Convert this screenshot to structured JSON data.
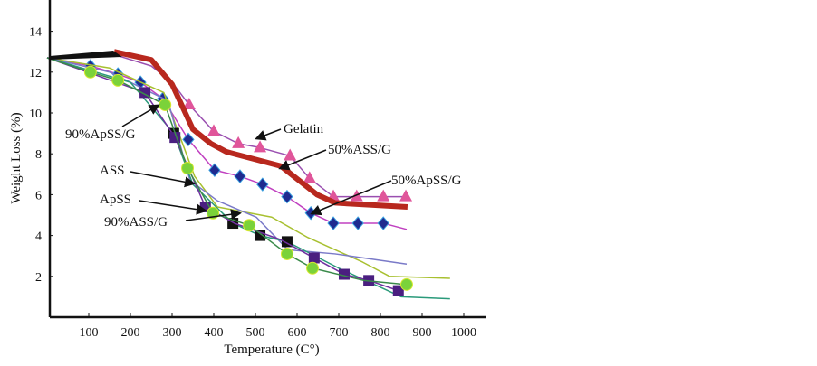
{
  "chart_data": {
    "type": "line",
    "title": "",
    "xlabel": "Temperature (C°)",
    "ylabel": "Weight Loss (%)",
    "xlim": [
      0,
      1050
    ],
    "ylim": [
      0,
      15.5
    ],
    "xticks": [
      "100",
      "200",
      "300",
      "400",
      "500",
      "600",
      "700",
      "800",
      "900",
      "1000"
    ],
    "yticks": [
      "2",
      "4",
      "6",
      "8",
      "10",
      "12",
      "14"
    ],
    "grid": false,
    "series": [
      {
        "id": "gelatin",
        "line_color": "#9a4fb0",
        "marker": "triangle",
        "marker_color": "#e0559a",
        "x": [
          0,
          170,
          250,
          300,
          341,
          400,
          459,
          511,
          583,
          630,
          687,
          743,
          807,
          861
        ],
        "y": [
          12.7,
          12.8,
          12.3,
          11.5,
          10.4,
          9.1,
          8.5,
          8.3,
          7.9,
          6.8,
          5.9,
          5.9,
          5.9,
          5.9
        ],
        "markers_from": 4
      },
      {
        "id": "50-ass-g",
        "line_color": "#b8281e",
        "marker": "none",
        "thick": true,
        "x": [
          161,
          250,
          300,
          350,
          393,
          430,
          561,
          648,
          691,
          865
        ],
        "y": [
          13.0,
          12.6,
          11.4,
          9.2,
          8.5,
          8.1,
          7.4,
          6.0,
          5.6,
          5.4
        ]
      },
      {
        "id": "50-apss-g",
        "line_color": "#c040c0",
        "marker": "diamond",
        "marker_color": "#1f2a8f",
        "x": [
          0,
          104,
          170,
          224,
          278,
          339,
          402,
          463,
          517,
          576,
          633,
          687,
          746,
          807,
          863
        ],
        "y": [
          12.7,
          12.3,
          11.9,
          11.5,
          10.7,
          8.7,
          7.2,
          6.9,
          6.5,
          5.9,
          5.1,
          4.6,
          4.6,
          4.6,
          4.3
        ],
        "markers_from": 1,
        "markers_to": 13
      },
      {
        "id": "yellow-green",
        "line_color": "#a8c030",
        "marker": "none",
        "x": [
          0,
          150,
          280,
          354,
          409,
          539,
          626,
          757,
          822,
          967
        ],
        "y": [
          12.7,
          12.2,
          11.0,
          6.9,
          5.4,
          4.9,
          3.9,
          2.7,
          2.0,
          1.9
        ]
      },
      {
        "id": "lavender",
        "line_color": "#7a7ac8",
        "marker": "none",
        "x": [
          0,
          150,
          290,
          343,
          409,
          502,
          578,
          691,
          863
        ],
        "y": [
          12.7,
          12.0,
          10.6,
          6.7,
          5.7,
          4.9,
          3.3,
          3.1,
          2.6
        ]
      },
      {
        "id": "black-squares",
        "line_color": "#2a9a7a",
        "marker": "square",
        "marker_color": "#111111",
        "x": [
          0,
          200,
          304,
          350,
          446,
          511,
          576,
          700,
          850,
          967
        ],
        "y": [
          12.7,
          11.5,
          9.0,
          6.5,
          4.6,
          4.0,
          3.7,
          2.4,
          1.0,
          0.9
        ],
        "markers": [
          2,
          4,
          5,
          6
        ]
      },
      {
        "id": "purple-squares",
        "line_color": "#7030a0",
        "marker": "square",
        "marker_color": "#4a1f80",
        "x": [
          0,
          235,
          307,
          380,
          450,
          560,
          641,
          713,
          772,
          843
        ],
        "y": [
          12.7,
          11.0,
          8.8,
          5.4,
          4.6,
          3.8,
          2.9,
          2.1,
          1.8,
          1.3
        ],
        "markers": [
          1,
          2,
          3,
          6,
          7,
          8,
          9
        ]
      },
      {
        "id": "green-circles",
        "line_color": "#3a8a4a",
        "marker": "circle",
        "marker_color": "#7bd23a",
        "x": [
          0,
          104,
          170,
          283,
          337,
          398,
          485,
          576,
          637,
          760,
          863
        ],
        "y": [
          12.7,
          12.0,
          11.6,
          10.4,
          7.3,
          5.1,
          4.5,
          3.1,
          2.4,
          1.8,
          1.6
        ],
        "markers": [
          1,
          2,
          3,
          4,
          5,
          6,
          7,
          8,
          10
        ]
      }
    ],
    "annotations": [
      {
        "text": "90%ApSS/G"
      },
      {
        "text": "ASS"
      },
      {
        "text": "ApSS"
      },
      {
        "text": "90%ASS/G"
      },
      {
        "text": "Gelatin"
      },
      {
        "text": "50%ASS/G"
      },
      {
        "text": "50%ApSS/G"
      }
    ]
  }
}
